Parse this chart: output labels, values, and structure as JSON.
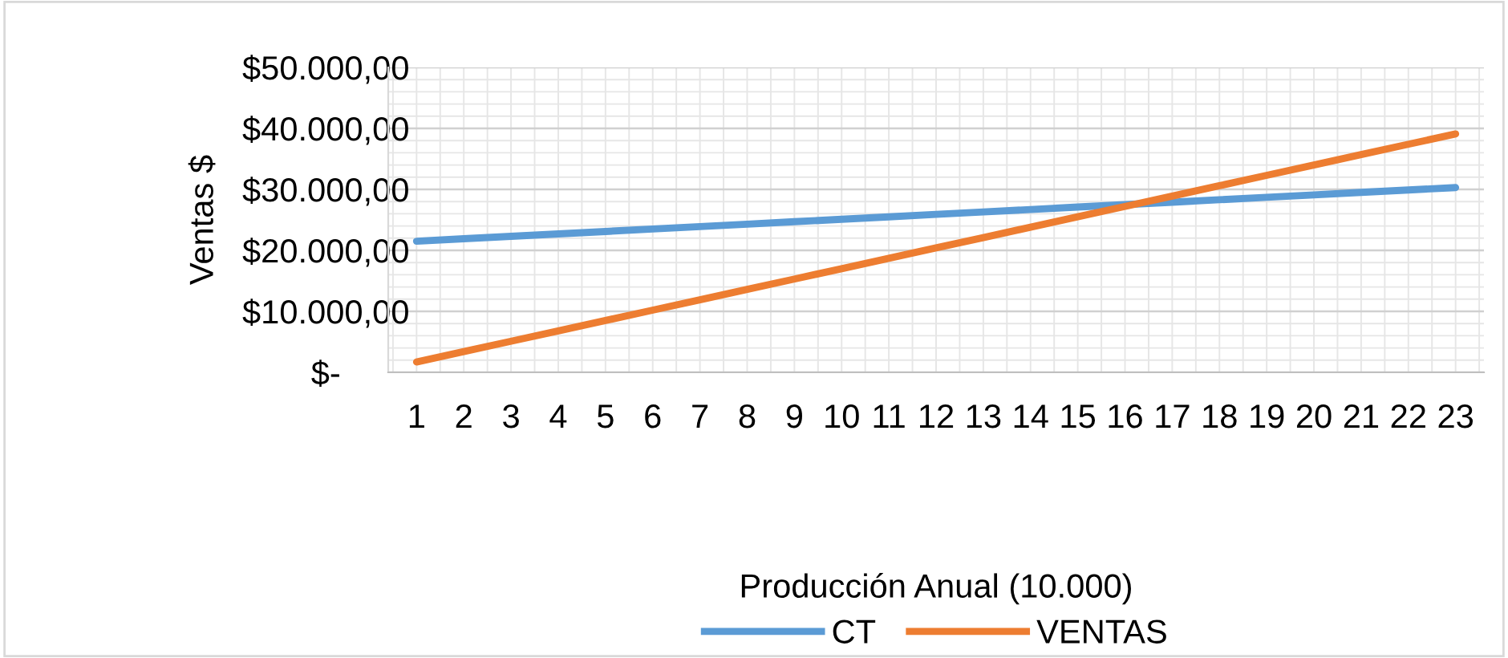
{
  "chart_data": {
    "type": "line",
    "xlabel": "Producción Anual (10.000)",
    "ylabel": "Ventas $",
    "categories": [
      "1",
      "2",
      "3",
      "4",
      "5",
      "6",
      "7",
      "8",
      "9",
      "10",
      "11",
      "12",
      "13",
      "14",
      "15",
      "16",
      "17",
      "18",
      "19",
      "20",
      "21",
      "22",
      "23"
    ],
    "series": [
      {
        "name": "CT",
        "color": "#5b9bd5",
        "values": [
          21500,
          21900,
          22300,
          22700,
          23100,
          23500,
          23900,
          24300,
          24700,
          25100,
          25500,
          25900,
          26300,
          26700,
          27100,
          27500,
          27900,
          28300,
          28700,
          29100,
          29500,
          29900,
          30300
        ]
      },
      {
        "name": "VENTAS",
        "color": "#ed7d31",
        "values": [
          1700,
          3400,
          5100,
          6800,
          8500,
          10200,
          11900,
          13600,
          15300,
          17000,
          18700,
          20400,
          22100,
          23800,
          25500,
          27200,
          28900,
          30600,
          32300,
          34000,
          35700,
          37400,
          39100
        ]
      }
    ],
    "ylim": [
      0,
      50000
    ],
    "yticks": [
      {
        "value": 0,
        "label": "$-"
      },
      {
        "value": 10000,
        "label": "$10.000,00"
      },
      {
        "value": 20000,
        "label": "$20.000,00"
      },
      {
        "value": 30000,
        "label": "$30.000,00"
      },
      {
        "value": 40000,
        "label": "$40.000,00"
      },
      {
        "value": 50000,
        "label": "$50.000,00"
      }
    ],
    "grid": true,
    "legend": "bottom",
    "marker": "none",
    "line_style": "solid"
  }
}
